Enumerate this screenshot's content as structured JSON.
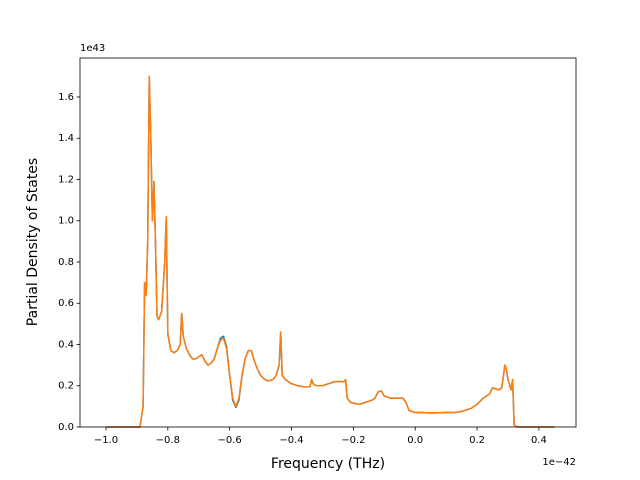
{
  "chart_data": {
    "type": "line",
    "xlabel": "Frequency (THz)",
    "ylabel": "Partial Density of States",
    "annotations": [
      "1e43",
      "1e−42"
    ],
    "x": [
      -1.0,
      -0.89,
      -0.88,
      -0.875,
      -0.87,
      -0.865,
      -0.86,
      -0.855,
      -0.85,
      -0.845,
      -0.84,
      -0.835,
      -0.83,
      -0.82,
      -0.81,
      -0.805,
      -0.8,
      -0.79,
      -0.78,
      -0.77,
      -0.76,
      -0.755,
      -0.75,
      -0.74,
      -0.73,
      -0.72,
      -0.71,
      -0.7,
      -0.69,
      -0.68,
      -0.67,
      -0.66,
      -0.65,
      -0.64,
      -0.63,
      -0.62,
      -0.61,
      -0.6,
      -0.59,
      -0.58,
      -0.57,
      -0.56,
      -0.55,
      -0.54,
      -0.53,
      -0.52,
      -0.51,
      -0.5,
      -0.49,
      -0.48,
      -0.47,
      -0.46,
      -0.45,
      -0.44,
      -0.435,
      -0.43,
      -0.42,
      -0.4,
      -0.38,
      -0.36,
      -0.34,
      -0.335,
      -0.33,
      -0.32,
      -0.3,
      -0.28,
      -0.26,
      -0.24,
      -0.23,
      -0.225,
      -0.22,
      -0.21,
      -0.2,
      -0.18,
      -0.16,
      -0.14,
      -0.13,
      -0.12,
      -0.11,
      -0.1,
      -0.09,
      -0.08,
      -0.06,
      -0.04,
      -0.03,
      -0.02,
      -0.01,
      0,
      0.02,
      0.05,
      0.1,
      0.13,
      0.15,
      0.18,
      0.2,
      0.22,
      0.24,
      0.25,
      0.27,
      0.28,
      0.29,
      0.295,
      0.3,
      0.31,
      0.315,
      0.32,
      0.33,
      0.45
    ],
    "series": [
      {
        "color": "#1f77b4",
        "values": [
          0,
          0,
          0.1,
          0.7,
          0.64,
          0.9,
          1.7,
          1.4,
          1.0,
          1.19,
          0.9,
          0.54,
          0.52,
          0.56,
          0.8,
          1.02,
          0.45,
          0.37,
          0.36,
          0.37,
          0.4,
          0.55,
          0.44,
          0.38,
          0.35,
          0.33,
          0.33,
          0.34,
          0.35,
          0.32,
          0.3,
          0.31,
          0.33,
          0.38,
          0.43,
          0.44,
          0.39,
          0.25,
          0.13,
          0.095,
          0.13,
          0.25,
          0.33,
          0.37,
          0.37,
          0.32,
          0.28,
          0.25,
          0.235,
          0.225,
          0.225,
          0.23,
          0.25,
          0.3,
          0.46,
          0.25,
          0.23,
          0.21,
          0.2,
          0.195,
          0.195,
          0.23,
          0.21,
          0.2,
          0.2,
          0.21,
          0.22,
          0.22,
          0.22,
          0.23,
          0.14,
          0.12,
          0.115,
          0.11,
          0.12,
          0.13,
          0.14,
          0.17,
          0.175,
          0.15,
          0.145,
          0.14,
          0.14,
          0.14,
          0.12,
          0.08,
          0.075,
          0.07,
          0.07,
          0.068,
          0.07,
          0.07,
          0.075,
          0.09,
          0.11,
          0.14,
          0.16,
          0.19,
          0.18,
          0.19,
          0.3,
          0.28,
          0.23,
          0.18,
          0.23,
          0.01,
          0,
          0
        ]
      },
      {
        "color": "#ff7f0e",
        "values": [
          0,
          0,
          0.1,
          0.7,
          0.64,
          0.9,
          1.7,
          1.4,
          1.0,
          1.19,
          0.9,
          0.54,
          0.52,
          0.56,
          0.8,
          1.02,
          0.45,
          0.37,
          0.36,
          0.37,
          0.4,
          0.55,
          0.44,
          0.38,
          0.35,
          0.33,
          0.33,
          0.34,
          0.35,
          0.32,
          0.3,
          0.31,
          0.33,
          0.38,
          0.42,
          0.43,
          0.38,
          0.25,
          0.14,
          0.1,
          0.14,
          0.25,
          0.33,
          0.37,
          0.37,
          0.32,
          0.28,
          0.25,
          0.235,
          0.225,
          0.225,
          0.23,
          0.25,
          0.3,
          0.46,
          0.25,
          0.23,
          0.21,
          0.2,
          0.195,
          0.195,
          0.23,
          0.21,
          0.2,
          0.2,
          0.21,
          0.22,
          0.22,
          0.22,
          0.23,
          0.14,
          0.12,
          0.115,
          0.11,
          0.12,
          0.13,
          0.14,
          0.17,
          0.175,
          0.15,
          0.145,
          0.14,
          0.14,
          0.14,
          0.12,
          0.08,
          0.075,
          0.07,
          0.07,
          0.068,
          0.07,
          0.07,
          0.075,
          0.09,
          0.11,
          0.14,
          0.16,
          0.19,
          0.18,
          0.19,
          0.3,
          0.28,
          0.23,
          0.18,
          0.23,
          0.01,
          0,
          0
        ]
      }
    ],
    "xlim": [
      -1.084,
      0.52
    ],
    "xticks": [
      {
        "value": -1.0,
        "label": "−1.0"
      },
      {
        "value": -0.8,
        "label": "−0.8"
      },
      {
        "value": -0.6,
        "label": "−0.6"
      },
      {
        "value": -0.4,
        "label": "−0.4"
      },
      {
        "value": -0.2,
        "label": "−0.2"
      },
      {
        "value": 0,
        "label": "0.0"
      },
      0.2,
      0.4
    ],
    "ylim": [
      0,
      1.789
    ],
    "yticks": [
      {
        "value": 0,
        "label": "0.0"
      },
      0.2,
      0.4,
      0.6,
      0.8,
      {
        "value": 1,
        "label": "1.0"
      },
      1.2,
      1.4,
      1.6
    ],
    "grid": false
  }
}
